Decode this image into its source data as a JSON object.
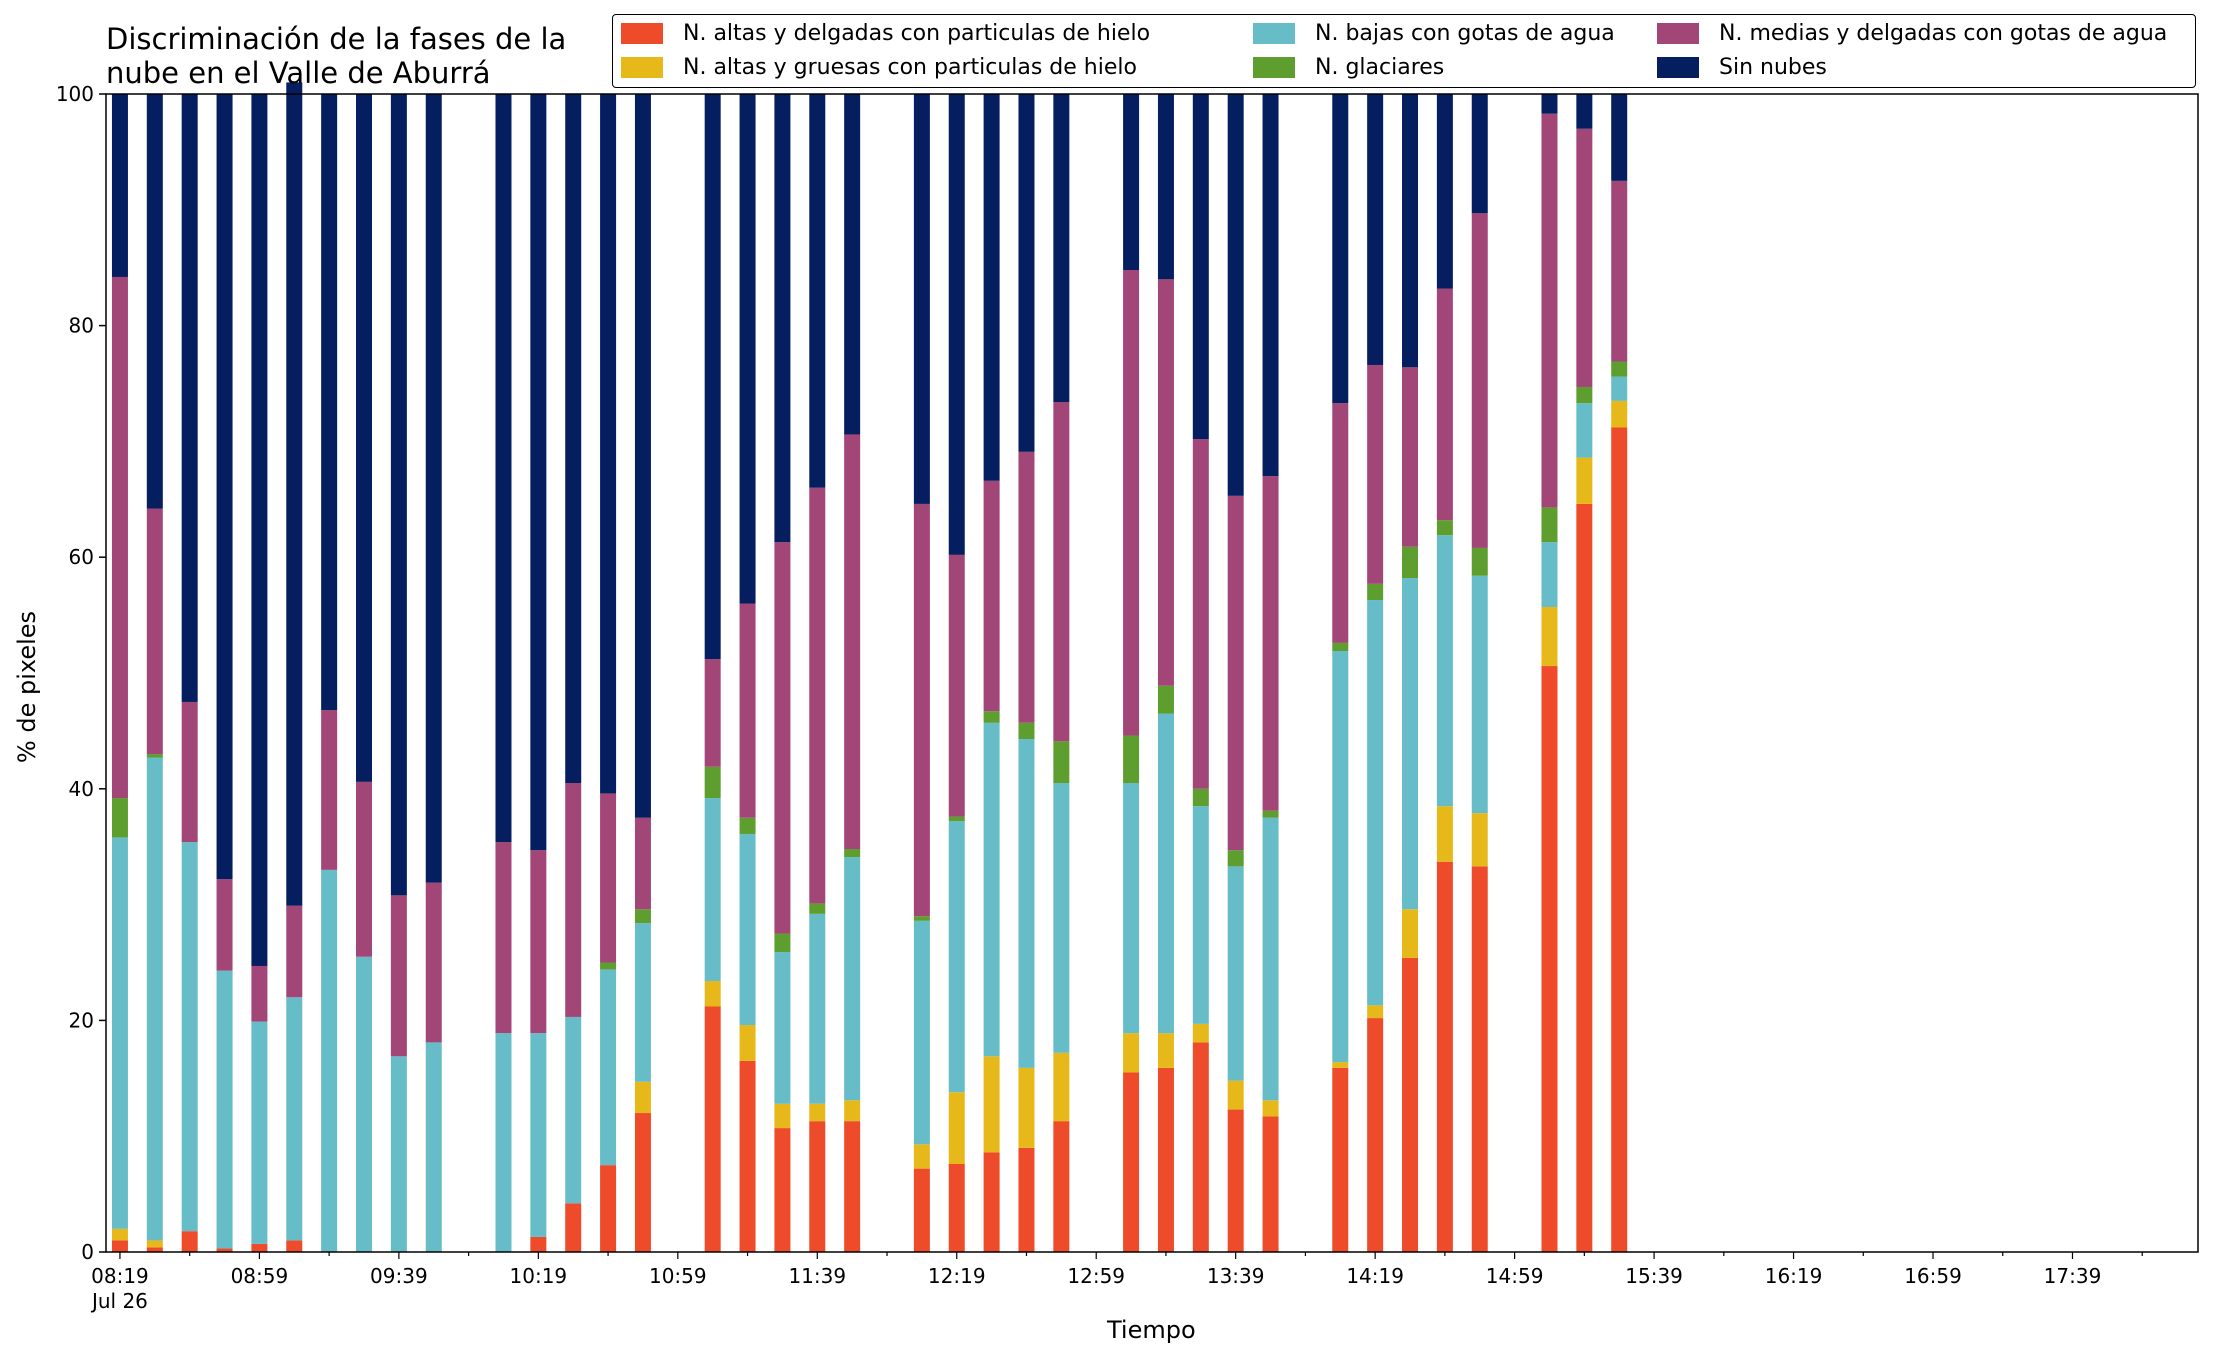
{
  "chart_data": {
    "type": "bar",
    "stacked": true,
    "title": "Discriminación de la fases de la\nnube en el Valle de Aburrá",
    "xlabel": "Tiempo",
    "ylabel": "% de pixeles",
    "ylim": [
      0,
      100
    ],
    "yticks": [
      0,
      20,
      40,
      60,
      80,
      100
    ],
    "xlim_minutes_after_0819": [
      -4,
      596
    ],
    "xticks": [
      {
        "label": "08:19",
        "sublabel": "Jul 26",
        "minute": 0
      },
      {
        "label": "08:59",
        "minute": 40
      },
      {
        "label": "09:39",
        "minute": 80
      },
      {
        "label": "10:19",
        "minute": 120
      },
      {
        "label": "10:59",
        "minute": 160
      },
      {
        "label": "11:39",
        "minute": 200
      },
      {
        "label": "12:19",
        "minute": 240
      },
      {
        "label": "12:59",
        "minute": 280
      },
      {
        "label": "13:39",
        "minute": 320
      },
      {
        "label": "14:19",
        "minute": 360
      },
      {
        "label": "14:59",
        "minute": 400
      },
      {
        "label": "15:39",
        "minute": 440
      },
      {
        "label": "16:19",
        "minute": 480
      },
      {
        "label": "16:59",
        "minute": 520
      },
      {
        "label": "17:39",
        "minute": 560
      }
    ],
    "grid": false,
    "legend_position": "top-right",
    "categories": [
      "08:19",
      "08:29",
      "08:39",
      "08:49",
      "08:59",
      "09:09",
      "09:19",
      "09:29",
      "09:39",
      "09:49",
      "10:09",
      "10:19",
      "10:29",
      "10:39",
      "10:49",
      "11:09",
      "11:19",
      "11:29",
      "11:39",
      "11:49",
      "12:09",
      "12:19",
      "12:29",
      "12:39",
      "12:49",
      "13:09",
      "13:19",
      "13:29",
      "13:39",
      "13:49",
      "14:09",
      "14:19",
      "14:29",
      "14:39",
      "14:49",
      "15:09",
      "15:19",
      "15:29"
    ],
    "x_minutes": [
      0,
      10,
      20,
      30,
      40,
      50,
      60,
      70,
      80,
      90,
      110,
      120,
      130,
      140,
      150,
      170,
      180,
      190,
      200,
      210,
      230,
      240,
      250,
      260,
      270,
      290,
      300,
      310,
      320,
      330,
      350,
      360,
      370,
      380,
      390,
      410,
      420,
      430
    ],
    "series": [
      {
        "name": "N. altas y delgadas con particulas de hielo",
        "color": "#ee4b2b",
        "values": [
          1.0,
          0.4,
          1.8,
          0.3,
          0.7,
          1.0,
          0,
          0,
          0,
          0,
          0,
          1.3,
          4.2,
          7.5,
          12.0,
          21.2,
          16.5,
          10.7,
          11.3,
          11.3,
          7.2,
          7.6,
          8.6,
          9.0,
          11.3,
          15.5,
          15.9,
          18.1,
          12.3,
          11.7,
          15.9,
          20.2,
          25.4,
          33.7,
          33.3,
          50.6,
          64.6,
          71.2
        ]
      },
      {
        "name": "N. altas y gruesas con particulas de hielo",
        "color": "#e6b81a",
        "values": [
          1.0,
          0.6,
          0,
          0,
          0,
          0,
          0,
          0,
          0,
          0,
          0,
          0,
          0,
          0,
          2.7,
          2.2,
          3.1,
          2.1,
          1.5,
          1.8,
          2.1,
          6.2,
          8.3,
          6.9,
          5.9,
          3.4,
          3.0,
          1.6,
          2.5,
          1.4,
          0.5,
          1.1,
          4.2,
          4.8,
          4.6,
          5.1,
          4.0,
          2.3
        ]
      },
      {
        "name": "N. bajas con gotas de agua",
        "color": "#66bdc8",
        "values": [
          33.8,
          41.7,
          33.6,
          24.0,
          19.2,
          21.0,
          33.0,
          25.5,
          16.9,
          18.1,
          18.9,
          17.6,
          16.1,
          16.9,
          13.7,
          15.8,
          16.5,
          13.1,
          16.4,
          21.0,
          19.3,
          23.4,
          28.8,
          28.4,
          23.3,
          21.6,
          27.6,
          18.8,
          18.5,
          24.4,
          35.5,
          35.0,
          28.6,
          23.4,
          20.5,
          5.6,
          4.7,
          2.1
        ]
      },
      {
        "name": "N. glaciares",
        "color": "#5d9e2f",
        "values": [
          3.4,
          0.3,
          0,
          0,
          0,
          0,
          0,
          0,
          0,
          0,
          0,
          0,
          0,
          0.6,
          1.2,
          2.7,
          1.4,
          1.6,
          0.9,
          0.7,
          0.4,
          0.4,
          1.0,
          1.4,
          3.6,
          4.1,
          2.4,
          1.5,
          1.4,
          0.6,
          0.7,
          1.4,
          2.7,
          1.3,
          2.4,
          3.0,
          1.4,
          1.3
        ]
      },
      {
        "name": "N. medias y delgadas con gotas de agua",
        "color": "#a24577",
        "values": [
          45.0,
          21.2,
          12.1,
          7.9,
          4.8,
          7.9,
          13.8,
          15.1,
          13.9,
          13.8,
          16.5,
          15.8,
          20.2,
          14.6,
          7.9,
          9.3,
          18.5,
          33.8,
          35.9,
          35.8,
          35.6,
          22.6,
          19.9,
          23.4,
          29.3,
          40.2,
          35.1,
          30.2,
          30.6,
          28.9,
          20.7,
          18.9,
          15.5,
          20.0,
          28.9,
          34.0,
          22.3,
          15.6
        ]
      },
      {
        "name": "Sin nubes",
        "color": "#041e5f",
        "values": [
          15.8,
          35.8,
          52.5,
          67.8,
          75.3,
          71.1,
          53.2,
          59.4,
          69.2,
          68.1,
          64.6,
          65.3,
          59.5,
          60.4,
          62.5,
          48.8,
          44.0,
          38.7,
          34.0,
          29.4,
          35.4,
          39.8,
          33.4,
          30.9,
          26.6,
          15.2,
          16.0,
          29.8,
          34.7,
          33.0,
          26.7,
          23.4,
          23.6,
          16.8,
          10.3,
          1.7,
          3.0,
          7.5
        ]
      }
    ]
  }
}
